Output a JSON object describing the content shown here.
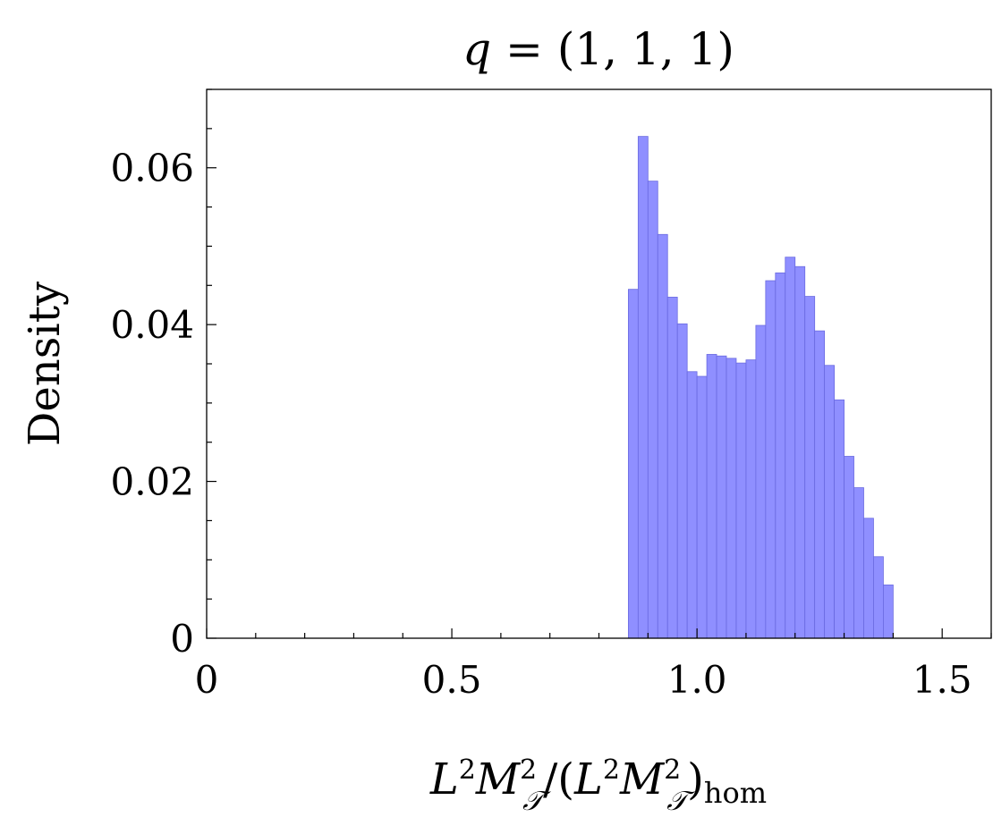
{
  "chart_data": {
    "type": "bar",
    "title": {
      "var": "q",
      "eq": " = ",
      "value": "(1, 1, 1)"
    },
    "xlabel": {
      "L": "L",
      "sup2": "2",
      "M": "M",
      "sub_T": "𝒯",
      "slash": "/(",
      "close": ")",
      "sub_hom": "hom"
    },
    "ylabel": "Density",
    "xlim": [
      0,
      1.6
    ],
    "ylim": [
      0,
      0.07
    ],
    "x_ticks": [
      {
        "value": 0,
        "label": "0"
      },
      {
        "value": 0.5,
        "label": "0.5"
      },
      {
        "value": 1.0,
        "label": "1.0"
      },
      {
        "value": 1.5,
        "label": "1.5"
      }
    ],
    "y_ticks": [
      {
        "value": 0,
        "label": "0"
      },
      {
        "value": 0.02,
        "label": "0.02"
      },
      {
        "value": 0.04,
        "label": "0.04"
      },
      {
        "value": 0.06,
        "label": "0.06"
      }
    ],
    "bin_width": 0.02,
    "bins": [
      {
        "x0": 0.86,
        "y": 0.0445
      },
      {
        "x0": 0.88,
        "y": 0.064
      },
      {
        "x0": 0.9,
        "y": 0.0583
      },
      {
        "x0": 0.92,
        "y": 0.0515
      },
      {
        "x0": 0.94,
        "y": 0.0435
      },
      {
        "x0": 0.96,
        "y": 0.0401
      },
      {
        "x0": 0.98,
        "y": 0.034
      },
      {
        "x0": 1.0,
        "y": 0.0334
      },
      {
        "x0": 1.02,
        "y": 0.0362
      },
      {
        "x0": 1.04,
        "y": 0.036
      },
      {
        "x0": 1.06,
        "y": 0.0357
      },
      {
        "x0": 1.08,
        "y": 0.0351
      },
      {
        "x0": 1.1,
        "y": 0.0355
      },
      {
        "x0": 1.12,
        "y": 0.0399
      },
      {
        "x0": 1.14,
        "y": 0.0456
      },
      {
        "x0": 1.16,
        "y": 0.0466
      },
      {
        "x0": 1.18,
        "y": 0.0486
      },
      {
        "x0": 1.2,
        "y": 0.0474
      },
      {
        "x0": 1.22,
        "y": 0.0436
      },
      {
        "x0": 1.24,
        "y": 0.0392
      },
      {
        "x0": 1.26,
        "y": 0.0348
      },
      {
        "x0": 1.28,
        "y": 0.0304
      },
      {
        "x0": 1.3,
        "y": 0.0232
      },
      {
        "x0": 1.32,
        "y": 0.0192
      },
      {
        "x0": 1.34,
        "y": 0.0153
      },
      {
        "x0": 1.36,
        "y": 0.0104
      },
      {
        "x0": 1.38,
        "y": 0.0068
      }
    ],
    "grid": false,
    "legend": "none",
    "colors": {
      "bar_fill": "#8f8fff",
      "bar_edge": "#6a6ae0",
      "axes": "#000000"
    }
  }
}
